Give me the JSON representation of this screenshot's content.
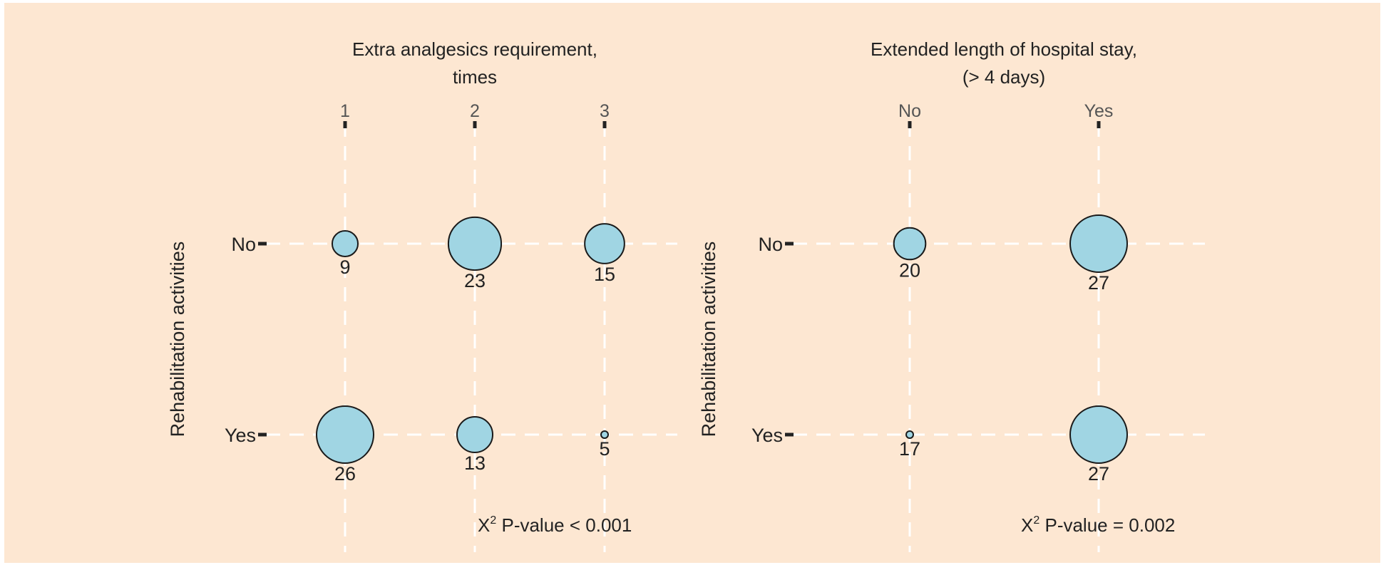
{
  "chart_data": [
    {
      "type": "bubble",
      "title_lines": [
        "Extra analgesics requirement,",
        "times"
      ],
      "ylabel": "Rehabilitation activities",
      "x_categories": [
        "1",
        "2",
        "3"
      ],
      "y_categories": [
        "No",
        "Yes"
      ],
      "values": [
        [
          9,
          23,
          15
        ],
        [
          26,
          13,
          5
        ]
      ],
      "annotation_prefix": "X",
      "annotation_sup": "2",
      "annotation_text": " P-value < 0.001"
    },
    {
      "type": "bubble",
      "title_lines": [
        "Extended length of hospital stay,",
        "(> 4 days)"
      ],
      "ylabel": "Rehabilitation activities",
      "x_categories": [
        "No",
        "Yes"
      ],
      "y_categories": [
        "No",
        "Yes"
      ],
      "values": [
        [
          20,
          27
        ],
        [
          17,
          27
        ]
      ],
      "annotation_prefix": "X",
      "annotation_sup": "2",
      "annotation_text": " P-value = 0.002"
    }
  ]
}
